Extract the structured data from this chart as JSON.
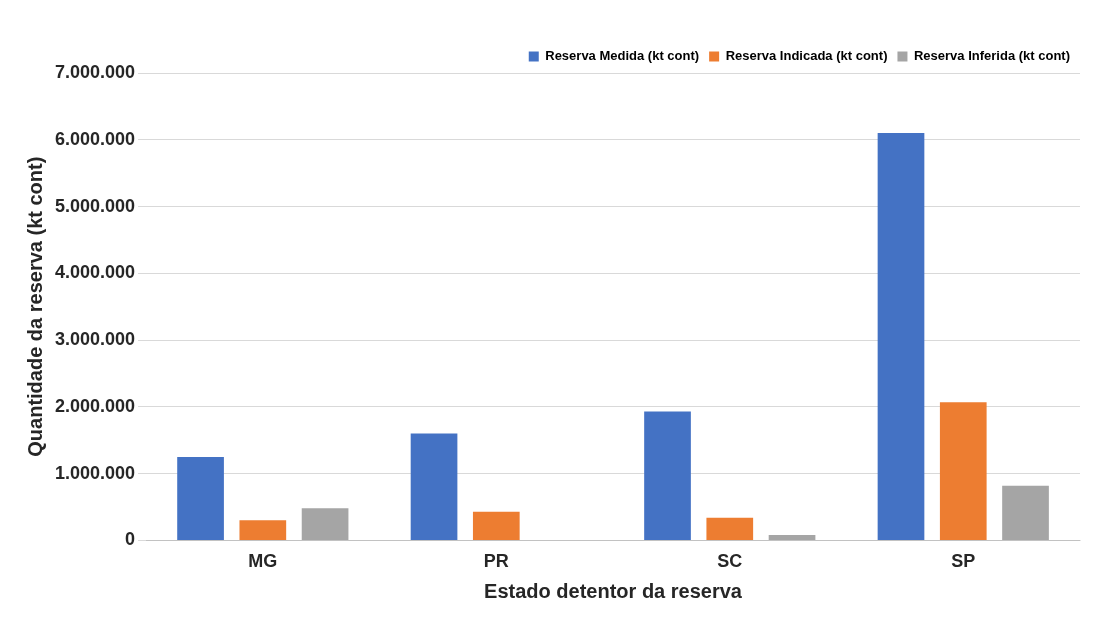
{
  "chart_data": {
    "type": "bar",
    "xlabel": "Estado detentor da reserva",
    "ylabel": "Quantidade da reserva (kt cont)",
    "categories": [
      "MG",
      "PR",
      "SC",
      "SP"
    ],
    "series": [
      {
        "name": "Reserva Medida (kt cont)",
        "color": "#4472c4",
        "values": [
          1250000,
          1600000,
          1930000,
          6100000
        ]
      },
      {
        "name": "Reserva Indicada (kt cont)",
        "color": "#ed7d31",
        "values": [
          300000,
          430000,
          340000,
          2070000
        ]
      },
      {
        "name": "Reserva Inferida (kt cont)",
        "color": "#a5a5a5",
        "values": [
          480000,
          0,
          80000,
          820000
        ]
      }
    ],
    "ylim": [
      0,
      7000000
    ],
    "yticks": [
      {
        "value": 0,
        "label": "0"
      },
      {
        "value": 1000000,
        "label": "1.000.000"
      },
      {
        "value": 2000000,
        "label": "2.000.000"
      },
      {
        "value": 3000000,
        "label": "3.000.000"
      },
      {
        "value": 4000000,
        "label": "4.000.000"
      },
      {
        "value": 5000000,
        "label": "5.000.000"
      },
      {
        "value": 6000000,
        "label": "6.000.000"
      },
      {
        "value": 7000000,
        "label": "7.000.000"
      }
    ],
    "grid": "y",
    "legend": "top right"
  }
}
